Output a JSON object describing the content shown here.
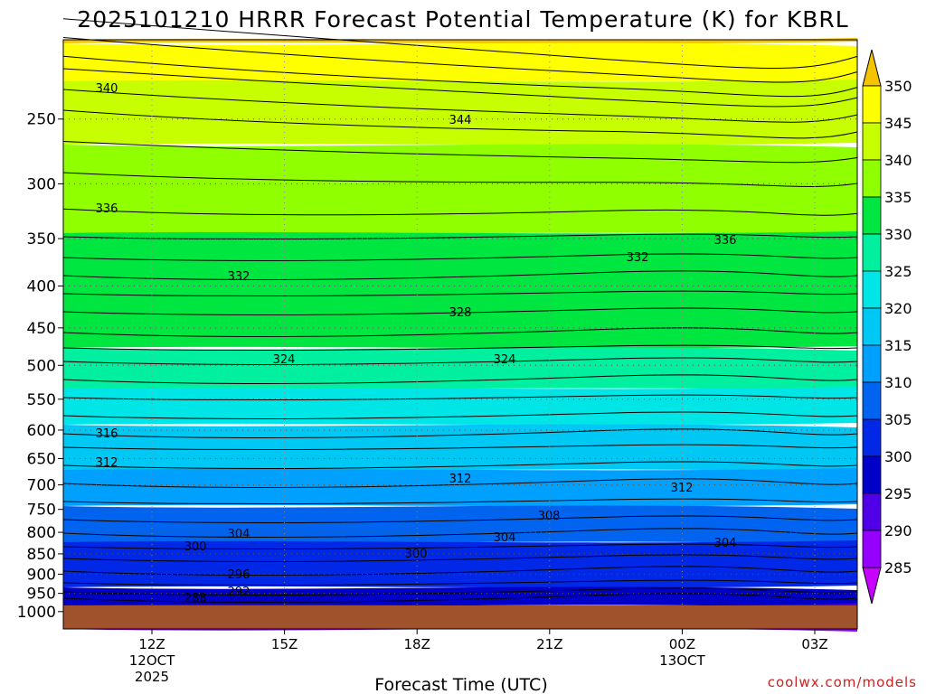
{
  "chart_data": {
    "type": "heatmap",
    "title": "2025101210 HRRR Forecast Potential Temperature (K) for KBRL",
    "xlabel": "Forecast Time (UTC)",
    "ylabel": "",
    "credit": "coolwx.com/models",
    "y_axis": {
      "ticks": [
        "250",
        "300",
        "350",
        "400",
        "450",
        "500",
        "550",
        "600",
        "650",
        "700",
        "750",
        "800",
        "850",
        "900",
        "950",
        "1000"
      ]
    },
    "x_axis": {
      "ticks": [
        {
          "label": "12Z",
          "sub1": "12OCT",
          "sub2": "2025"
        },
        {
          "label": "15Z",
          "sub1": "",
          "sub2": ""
        },
        {
          "label": "18Z",
          "sub1": "",
          "sub2": ""
        },
        {
          "label": "21Z",
          "sub1": "",
          "sub2": ""
        },
        {
          "label": "00Z",
          "sub1": "13OCT",
          "sub2": ""
        },
        {
          "label": "03Z",
          "sub1": "",
          "sub2": ""
        }
      ]
    },
    "colorbar": {
      "levels": [
        "350",
        "345",
        "340",
        "335",
        "330",
        "325",
        "320",
        "315",
        "310",
        "305",
        "300",
        "295",
        "290",
        "285"
      ],
      "colors": [
        "#f5c400",
        "#ffff00",
        "#c8ff00",
        "#90ff00",
        "#00e640",
        "#00f0a0",
        "#00e6e6",
        "#00c8f5",
        "#00a0ff",
        "#0064f0",
        "#0028e6",
        "#0000c8",
        "#5000e6",
        "#9600ff",
        "#c800ff"
      ]
    },
    "contour_labels": [
      "340",
      "344",
      "336",
      "336",
      "332",
      "332",
      "328",
      "324",
      "324",
      "316",
      "312",
      "312",
      "312",
      "308",
      "304",
      "304",
      "304",
      "300",
      "300",
      "296",
      "292",
      "288"
    ],
    "ground_color": "#a0522d"
  }
}
